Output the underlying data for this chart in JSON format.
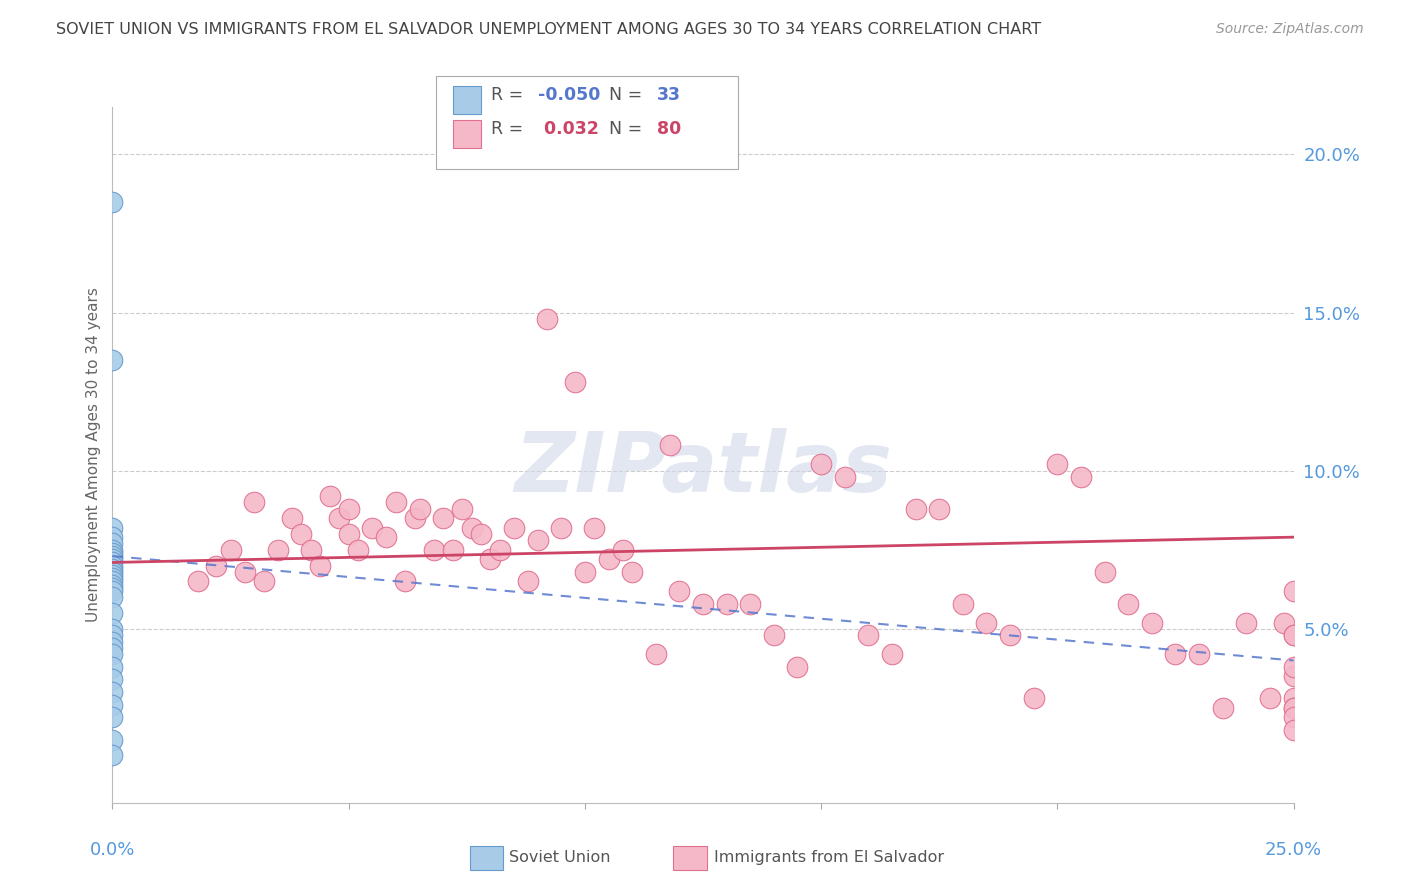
{
  "title": "SOVIET UNION VS IMMIGRANTS FROM EL SALVADOR UNEMPLOYMENT AMONG AGES 30 TO 34 YEARS CORRELATION CHART",
  "source": "Source: ZipAtlas.com",
  "ylabel": "Unemployment Among Ages 30 to 34 years",
  "ytick_labels": [
    "20.0%",
    "15.0%",
    "10.0%",
    "5.0%"
  ],
  "ytick_values": [
    0.2,
    0.15,
    0.1,
    0.05
  ],
  "xlim": [
    0.0,
    0.25
  ],
  "ylim": [
    -0.005,
    0.215
  ],
  "blue_color": "#a8cce8",
  "blue_edge_color": "#6699cc",
  "pink_color": "#f5b8c8",
  "pink_edge_color": "#e07090",
  "trendline_blue_color": "#5577cc",
  "trendline_pink_color": "#cc4466",
  "legend_R_blue": "-0.050",
  "legend_N_blue": "33",
  "legend_R_pink": " 0.032",
  "legend_N_pink": "80",
  "blue_scatter_x": [
    0.0,
    0.0,
    0.0,
    0.0,
    0.0,
    0.0,
    0.0,
    0.0,
    0.0,
    0.0,
    0.0,
    0.0,
    0.0,
    0.0,
    0.0,
    0.0,
    0.0,
    0.0,
    0.0,
    0.0,
    0.0,
    0.0,
    0.0,
    0.0,
    0.0,
    0.0,
    0.0,
    0.0,
    0.0,
    0.0,
    0.0,
    0.0,
    0.0
  ],
  "blue_scatter_y": [
    0.185,
    0.135,
    0.082,
    0.079,
    0.077,
    0.075,
    0.074,
    0.073,
    0.072,
    0.071,
    0.07,
    0.069,
    0.068,
    0.067,
    0.066,
    0.065,
    0.064,
    0.063,
    0.062,
    0.06,
    0.055,
    0.05,
    0.048,
    0.046,
    0.044,
    0.042,
    0.038,
    0.034,
    0.03,
    0.026,
    0.022,
    0.015,
    0.01
  ],
  "pink_scatter_x": [
    0.018,
    0.022,
    0.025,
    0.028,
    0.03,
    0.032,
    0.035,
    0.038,
    0.04,
    0.042,
    0.044,
    0.046,
    0.048,
    0.05,
    0.05,
    0.052,
    0.055,
    0.058,
    0.06,
    0.062,
    0.064,
    0.065,
    0.068,
    0.07,
    0.072,
    0.074,
    0.076,
    0.078,
    0.08,
    0.082,
    0.085,
    0.088,
    0.09,
    0.092,
    0.095,
    0.098,
    0.1,
    0.102,
    0.105,
    0.108,
    0.11,
    0.115,
    0.118,
    0.12,
    0.125,
    0.13,
    0.135,
    0.14,
    0.145,
    0.15,
    0.155,
    0.16,
    0.165,
    0.17,
    0.175,
    0.18,
    0.185,
    0.19,
    0.195,
    0.2,
    0.205,
    0.21,
    0.215,
    0.22,
    0.225,
    0.23,
    0.235,
    0.24,
    0.245,
    0.248,
    0.25,
    0.25,
    0.25,
    0.25,
    0.25,
    0.25,
    0.25,
    0.25,
    0.25,
    0.25
  ],
  "pink_scatter_y": [
    0.065,
    0.07,
    0.075,
    0.068,
    0.09,
    0.065,
    0.075,
    0.085,
    0.08,
    0.075,
    0.07,
    0.092,
    0.085,
    0.088,
    0.08,
    0.075,
    0.082,
    0.079,
    0.09,
    0.065,
    0.085,
    0.088,
    0.075,
    0.085,
    0.075,
    0.088,
    0.082,
    0.08,
    0.072,
    0.075,
    0.082,
    0.065,
    0.078,
    0.148,
    0.082,
    0.128,
    0.068,
    0.082,
    0.072,
    0.075,
    0.068,
    0.042,
    0.108,
    0.062,
    0.058,
    0.058,
    0.058,
    0.048,
    0.038,
    0.102,
    0.098,
    0.048,
    0.042,
    0.088,
    0.088,
    0.058,
    0.052,
    0.048,
    0.028,
    0.102,
    0.098,
    0.068,
    0.058,
    0.052,
    0.042,
    0.042,
    0.025,
    0.052,
    0.028,
    0.052,
    0.035,
    0.048,
    0.062,
    0.048,
    0.038,
    0.028,
    0.025,
    0.025,
    0.022,
    0.018
  ],
  "watermark_text": "ZIPatlas",
  "background_color": "#ffffff",
  "grid_color": "#cccccc",
  "axis_label_color": "#5599dd",
  "title_color": "#444444",
  "ylabel_color": "#666666"
}
